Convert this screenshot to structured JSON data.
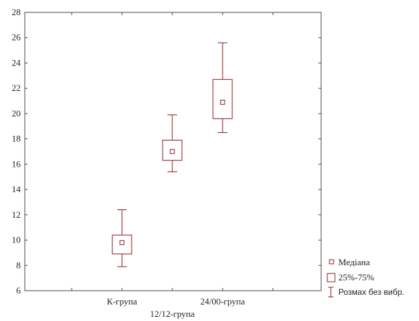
{
  "chart_data": {
    "type": "boxplot",
    "title": "",
    "xlabel": "",
    "ylabel": "",
    "ylim": [
      6,
      28
    ],
    "y_ticks": [
      6,
      8,
      10,
      12,
      14,
      16,
      18,
      20,
      22,
      24,
      26,
      28
    ],
    "categories": [
      "К-група",
      "12/12-група",
      "24/00-група"
    ],
    "series": [
      {
        "category": "К-група",
        "median": 9.8,
        "q1": 8.9,
        "q3": 10.4,
        "min": 7.9,
        "max": 12.4
      },
      {
        "category": "12/12-група",
        "median": 17.0,
        "q1": 16.3,
        "q3": 17.9,
        "min": 15.4,
        "max": 19.9
      },
      {
        "category": "24/00-група",
        "median": 20.9,
        "q1": 19.6,
        "q3": 22.7,
        "min": 18.5,
        "max": 25.6
      }
    ],
    "legend": {
      "position": "bottom-right",
      "entries": [
        {
          "key": "median",
          "label": "Медіана"
        },
        {
          "key": "box",
          "label": "25%-75%"
        },
        {
          "key": "range",
          "label": "Розмах без вибр."
        }
      ]
    },
    "grid": false,
    "colors": {
      "box": "#8b1a1a",
      "axis": "#444444",
      "text": "#222222"
    }
  }
}
